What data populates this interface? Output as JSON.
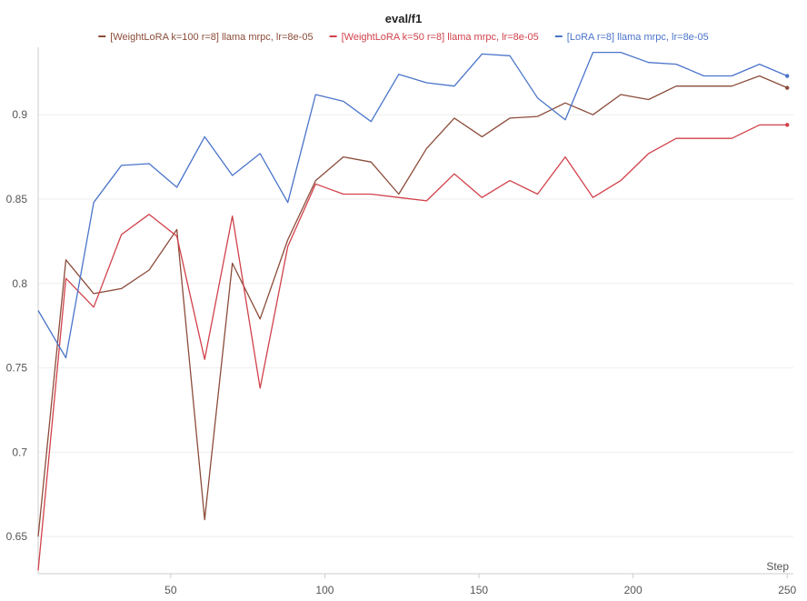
{
  "chart_data": {
    "type": "line",
    "title": "eval/f1",
    "xlabel": "Step",
    "ylabel": "",
    "xlim": [
      7,
      252
    ],
    "ylim": [
      0.628,
      0.94
    ],
    "xticks": [
      50,
      100,
      150,
      200,
      250
    ],
    "yticks": [
      0.65,
      0.7,
      0.75,
      0.8,
      0.85,
      0.9
    ],
    "grid": true,
    "legend_position": "top-center",
    "series": [
      {
        "name": "[WeightLoRA k=100 r=8] llama mrpc, lr=8e-05",
        "color": "#8b4c3a",
        "x": [
          7,
          16,
          25,
          34,
          43,
          52,
          61,
          70,
          79,
          88,
          97,
          106,
          115,
          124,
          133,
          142,
          151,
          160,
          169,
          178,
          187,
          196,
          205,
          214,
          223,
          232,
          241,
          250
        ],
        "y": [
          0.65,
          0.814,
          0.794,
          0.797,
          0.808,
          0.832,
          0.66,
          0.812,
          0.779,
          0.826,
          0.861,
          0.875,
          0.872,
          0.853,
          0.88,
          0.898,
          0.887,
          0.898,
          0.899,
          0.907,
          0.9,
          0.912,
          0.909,
          0.917,
          0.917,
          0.917,
          0.923,
          0.916
        ]
      },
      {
        "name": "[WeightLoRA k=50 r=8] llama mrpc, lr=8e-05",
        "color": "#d1414b",
        "x": [
          7,
          16,
          25,
          34,
          43,
          52,
          61,
          70,
          79,
          88,
          97,
          106,
          115,
          124,
          133,
          142,
          151,
          160,
          169,
          178,
          187,
          196,
          205,
          214,
          223,
          232,
          241,
          250
        ],
        "y": [
          0.63,
          0.803,
          0.786,
          0.829,
          0.841,
          0.828,
          0.755,
          0.84,
          0.738,
          0.822,
          0.859,
          0.853,
          0.853,
          0.851,
          0.849,
          0.865,
          0.851,
          0.861,
          0.853,
          0.875,
          0.851,
          0.861,
          0.877,
          0.886,
          0.886,
          0.886,
          0.894,
          0.894
        ]
      },
      {
        "name": "[LoRA r=8] llama mrpc, lr=8e-05",
        "color": "#4a74c9",
        "x": [
          7,
          16,
          25,
          34,
          43,
          52,
          61,
          70,
          79,
          88,
          97,
          106,
          115,
          124,
          133,
          142,
          151,
          160,
          169,
          178,
          187,
          196,
          205,
          214,
          223,
          232,
          241,
          250
        ],
        "y": [
          0.784,
          0.756,
          0.848,
          0.87,
          0.871,
          0.857,
          0.887,
          0.864,
          0.877,
          0.848,
          0.912,
          0.908,
          0.896,
          0.924,
          0.919,
          0.917,
          0.936,
          0.935,
          0.91,
          0.897,
          0.937,
          0.937,
          0.931,
          0.93,
          0.923,
          0.923,
          0.93,
          0.923
        ]
      }
    ]
  }
}
